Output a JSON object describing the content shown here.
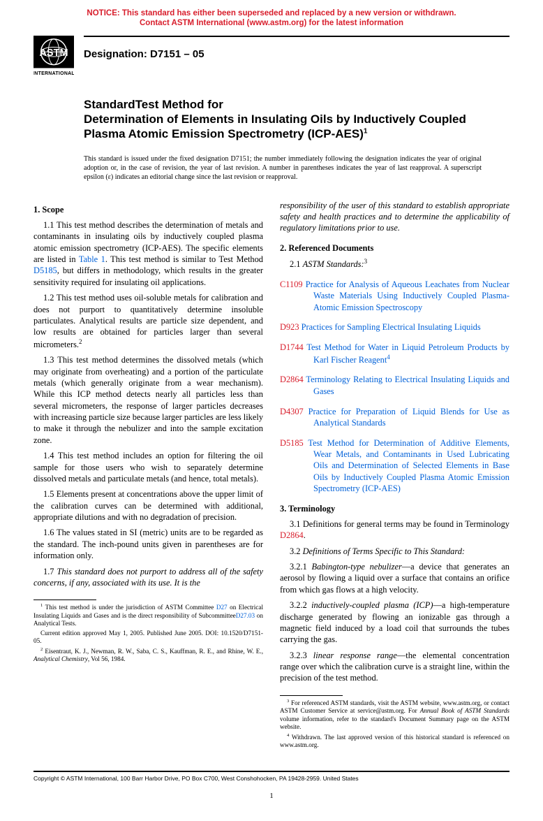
{
  "notice": {
    "color": "#d81e2c",
    "line1": "NOTICE: This standard has either been superseded and replaced by a new version or withdrawn.",
    "line2": "Contact ASTM International (www.astm.org) for the latest information"
  },
  "logo": {
    "top_text": "ASTM",
    "bottom_text": "INTERNATIONAL",
    "bg": "#000000",
    "fg": "#ffffff"
  },
  "designation": {
    "label": "Designation: D7151 – 05"
  },
  "title": {
    "line1": "StandardTest Method for",
    "line2": "Determination of Elements in Insulating Oils by Inductively Coupled Plasma Atomic Emission Spectrometry (ICP-AES)",
    "sup": "1"
  },
  "issued_note": "This standard is issued under the fixed designation D7151; the number immediately following the designation indicates the year of original adoption or, in the case of revision, the year of last revision. A number in parentheses indicates the year of last reapproval. A superscript epsilon (ε) indicates an editorial change since the last revision or reapproval.",
  "left": {
    "scope_head": "1. Scope",
    "p11a": "1.1 This test method describes the determination of metals and contaminants in insulating oils by inductively coupled plasma atomic emission spectrometry (ICP-AES). The specific elements are listed in ",
    "p11_link": "Table 1",
    "p11b": ". This test method is similar to Test Method ",
    "p11_link2": "D5185",
    "p11c": ", but differs in methodology, which results in the greater sensitivity required for insulating oil applications.",
    "p12": "1.2 This test method uses oil-soluble metals for calibration and does not purport to quantitatively determine insoluble particulates. Analytical results are particle size dependent, and low results are obtained for particles larger than several micrometers.",
    "p12_sup": "2",
    "p13": "1.3 This test method determines the dissolved metals (which may originate from overheating) and a portion of the particulate metals (which generally originate from a wear mechanism). While this ICP method detects nearly all particles less than several micrometers, the response of larger particles decreases with increasing particle size because larger particles are less likely to make it through the nebulizer and into the sample excitation zone.",
    "p14": "1.4 This test method includes an option for filtering the oil sample for those users who wish to separately determine dissolved metals and particulate metals (and hence, total metals).",
    "p15": "1.5 Elements present at concentrations above the upper limit of the calibration curves can be determined with additional, appropriate dilutions and with no degradation of precision.",
    "p16": "1.6 The values stated in SI (metric) units are to be regarded as the standard. The inch-pound units given in parentheses are for information only.",
    "p17": "1.7 This standard does not purport to address all of the safety concerns, if any, associated with its use. It is the",
    "fn1a": " This test method is under the jurisdiction of ASTM Committee ",
    "fn1_link1": "D27",
    "fn1b": " on Electrical Insulating Liquids and Gases and is the direct responsibility of Subcommittee",
    "fn1_link2": "D27.03",
    "fn1c": " on Analytical Tests.",
    "fn1d": "Current edition approved May 1, 2005. Published June 2005. DOI: 10.1520/D7151-05.",
    "fn2_sup": "2",
    "fn2": " Eisentraut, K. J., Newman, R. W., Saba, C. S., Kauffman, R. E., and Rhine, W. E., Analytical Chemistry, Vol 56, 1984.",
    "fn2_journal": "Analytical Chemistry"
  },
  "right": {
    "cont": "responsibility of the user of this standard to establish appropriate safety and health practices and to determine the applicability of regulatory limitations prior to use.",
    "refdocs_head": "2. Referenced Documents",
    "astm_std_label": "2.1 ASTM Standards:",
    "astm_sup": "3",
    "refs": [
      {
        "code": "C1109",
        "text": "Practice for Analysis of Aqueous Leachates from Nuclear Waste Materials Using Inductively Coupled Plasma-Atomic Emission Spectroscopy"
      },
      {
        "code": "D923",
        "text": "Practices for Sampling Electrical Insulating Liquids"
      },
      {
        "code": "D1744",
        "text": "Test Method for Water in Liquid Petroleum Products by Karl Fischer Reagent",
        "sup": "4"
      },
      {
        "code": "D2864",
        "text": "Terminology Relating to Electrical Insulating Liquids and Gases"
      },
      {
        "code": "D4307",
        "text": "Practice for Preparation of Liquid Blends for Use as Analytical Standards"
      },
      {
        "code": "D5185",
        "text": "Test Method for Determination of Additive Elements, Wear Metals, and Contaminants in Used Lubricating Oils and Determination of Selected Elements in Base Oils by Inductively Coupled Plasma Atomic Emission Spectrometry (ICP-AES)"
      }
    ],
    "term_head": "3. Terminology",
    "p31a": "3.1 Definitions for general terms may be found in Terminology ",
    "p31_link": "D2864",
    "p31b": ".",
    "p32": "3.2 Definitions of Terms Specific to This Standard:",
    "p321_term": "Babington-type nebulizer",
    "p321": "3.2.1 ",
    "p321b": "—a device that generates an aerosol by flowing a liquid over a surface that contains an orifice from which gas flows at a high velocity.",
    "p322": "3.2.2 ",
    "p322_term": "inductively-coupled plasma (ICP)",
    "p322b": "—a high-temperature discharge generated by flowing an ionizable gas through a magnetic field induced by a load coil that surrounds the tubes carrying the gas.",
    "p323": "3.2.3 ",
    "p323_term": "linear response range",
    "p323b": "—the elemental concentration range over which the calibration curve is a straight line, within the precision of the test method.",
    "fn3_sup": "3",
    "fn3a": " For referenced ASTM standards, visit the ASTM website, www.astm.org, or contact ASTM Customer Service at service@astm.org. For ",
    "fn3_ital": "Annual Book of ASTM Standards",
    "fn3b": " volume information, refer to the standard's Document Summary page on the ASTM website.",
    "fn4_sup": "4",
    "fn4": " Withdrawn. The last approved version of this historical standard is referenced on www.astm.org."
  },
  "footer": {
    "copyright": "Copyright © ASTM International, 100 Barr Harbor Drive, PO Box C700, West Conshohocken, PA 19428-2959. United States",
    "page": "1"
  },
  "colors": {
    "link": "#0060d8",
    "red": "#d81e2c"
  }
}
